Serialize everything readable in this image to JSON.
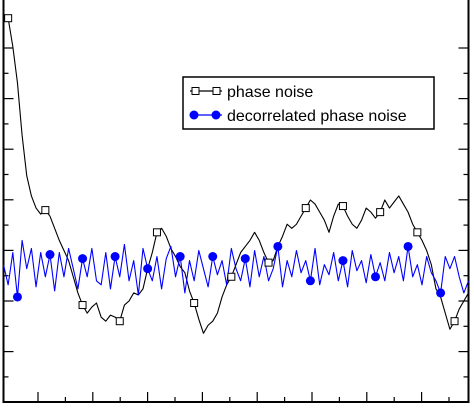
{
  "chart_data": {
    "type": "line",
    "title": "",
    "xlabel": "",
    "ylabel": "",
    "grid": false,
    "legend_position": "top-right",
    "xlim": [
      0,
      100
    ],
    "ylim": [
      0,
      100
    ],
    "series": [
      {
        "name": "phase noise",
        "color": "#000000",
        "marker": "open-square",
        "x": [
          0,
          1,
          2,
          3,
          4,
          5,
          6,
          7,
          8,
          9,
          10,
          11,
          12,
          13,
          14,
          15,
          16,
          17,
          18,
          19,
          20,
          21,
          22,
          23,
          24,
          25,
          26,
          27,
          28,
          29,
          30,
          31,
          32,
          33,
          34,
          35,
          36,
          37,
          38,
          39,
          40,
          41,
          42,
          43,
          44,
          45,
          46,
          47,
          48,
          49,
          50,
          51,
          52,
          53,
          54,
          55,
          56,
          57,
          58,
          59,
          60,
          61,
          62,
          63,
          64,
          65,
          66,
          67,
          68,
          69,
          70,
          71,
          72,
          73,
          74,
          75,
          76,
          77,
          78,
          79,
          80,
          81,
          82,
          83,
          84,
          85,
          86,
          87,
          88,
          89,
          90,
          91,
          92,
          93,
          94,
          95,
          96,
          97,
          98,
          99,
          100
        ],
        "values": [
          96.0,
          95.0,
          88.0,
          79.0,
          66.0,
          56.0,
          51.0,
          48.0,
          46.5,
          47.5,
          46.0,
          43.0,
          40.0,
          37.5,
          35.0,
          31.0,
          27.0,
          24.0,
          22.0,
          23.5,
          24.5,
          21.0,
          20.0,
          21.5,
          21.0,
          20.0,
          24.0,
          25.0,
          27.0,
          26.5,
          28.0,
          33.0,
          37.0,
          42.0,
          43.0,
          41.0,
          38.0,
          36.0,
          33.5,
          32.0,
          27.5,
          24.5,
          20.5,
          17.0,
          19.0,
          20.0,
          22.0,
          26.0,
          29.0,
          31.0,
          34.0,
          37.0,
          38.5,
          40.0,
          42.0,
          40.0,
          37.0,
          34.5,
          35.0,
          38.5,
          41.0,
          44.0,
          43.0,
          44.0,
          46.0,
          48.0,
          50.0,
          49.0,
          47.0,
          45.0,
          42.0,
          46.0,
          49.0,
          48.5,
          46.0,
          44.0,
          43.0,
          45.0,
          48.0,
          47.0,
          45.5,
          47.0,
          50.0,
          48.0,
          49.5,
          51.0,
          49.0,
          47.0,
          44.0,
          42.0,
          40.0,
          37.5,
          34.0,
          28.0,
          26.0,
          22.0,
          18.0,
          20.0,
          23.0,
          25.0,
          27.0
        ]
      },
      {
        "name": "decorrelated phase noise",
        "color": "#0000ff",
        "marker": "filled-circle",
        "x": [
          0,
          1,
          2,
          3,
          4,
          5,
          6,
          7,
          8,
          9,
          10,
          11,
          12,
          13,
          14,
          15,
          16,
          17,
          18,
          19,
          20,
          21,
          22,
          23,
          24,
          25,
          26,
          27,
          28,
          29,
          30,
          31,
          32,
          33,
          34,
          35,
          36,
          37,
          38,
          39,
          40,
          41,
          42,
          43,
          44,
          45,
          46,
          47,
          48,
          49,
          50,
          51,
          52,
          53,
          54,
          55,
          56,
          57,
          58,
          59,
          60,
          61,
          62,
          63,
          64,
          65,
          66,
          67,
          68,
          69,
          70,
          71,
          72,
          73,
          74,
          75,
          76,
          77,
          78,
          79,
          80,
          81,
          82,
          83,
          84,
          85,
          86,
          87,
          88,
          89,
          90,
          91,
          92,
          93,
          94,
          95,
          96,
          97,
          98,
          99,
          100
        ],
        "values": [
          34.0,
          29.0,
          37.0,
          26.0,
          40.0,
          33.0,
          38.0,
          28.5,
          37.0,
          31.0,
          36.5,
          27.5,
          37.0,
          31.0,
          38.0,
          33.0,
          28.0,
          35.5,
          31.0,
          38.0,
          30.0,
          29.0,
          37.0,
          28.0,
          36.0,
          31.0,
          39.0,
          30.0,
          35.0,
          26.5,
          38.0,
          33.0,
          30.0,
          36.0,
          28.0,
          35.5,
          38.5,
          31.0,
          36.0,
          27.0,
          35.0,
          30.0,
          37.5,
          33.0,
          28.5,
          36.0,
          31.5,
          35.0,
          29.0,
          38.0,
          33.0,
          30.0,
          35.5,
          28.5,
          37.5,
          31.0,
          36.0,
          30.0,
          33.0,
          38.5,
          28.5,
          35.0,
          31.0,
          37.5,
          32.0,
          35.0,
          30.0,
          38.0,
          29.0,
          34.0,
          31.5,
          37.0,
          30.0,
          35.0,
          28.5,
          37.5,
          32.5,
          35.0,
          29.5,
          36.5,
          31.0,
          34.5,
          30.0,
          37.0,
          32.0,
          36.0,
          30.0,
          38.5,
          31.0,
          34.0,
          29.0,
          36.0,
          32.0,
          30.0,
          27.0,
          36.0,
          33.0,
          36.0,
          31.0,
          27.0,
          30.0
        ]
      }
    ]
  },
  "legend": {
    "entries": [
      "phase noise",
      "decorrelated phase noise"
    ]
  }
}
